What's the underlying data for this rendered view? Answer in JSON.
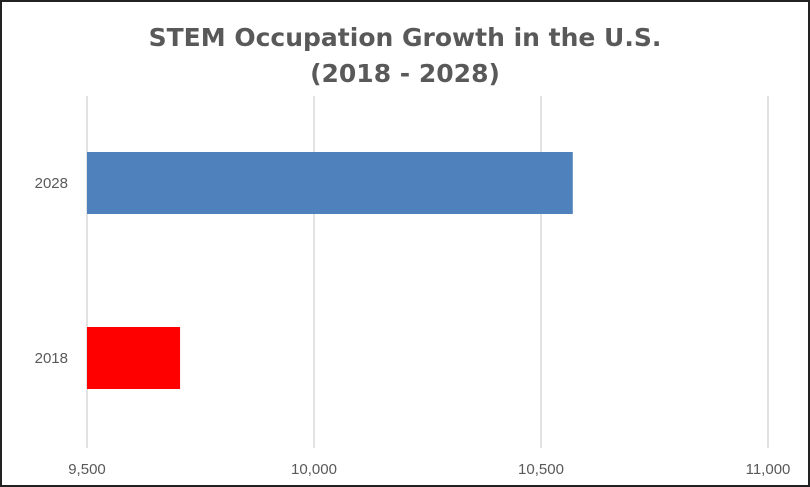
{
  "chart_data": {
    "type": "bar",
    "orientation": "horizontal",
    "title": "STEM Occupation Growth in the U.S.",
    "subtitle": "(2018 - 2028)",
    "categories": [
      "2028",
      "2018"
    ],
    "values": [
      10570,
      9705
    ],
    "bar_colors": [
      "#4F81BD",
      "#FF0000"
    ],
    "xlabel": "",
    "ylabel": "",
    "xlim": [
      9500,
      11000
    ],
    "x_ticks": [
      9500,
      10000,
      10500,
      11000
    ],
    "x_tick_labels": [
      "9,500",
      "10,000",
      "10,500",
      "11,000"
    ],
    "grid": true,
    "grid_color": "#D9D9D9",
    "legend": "none"
  }
}
